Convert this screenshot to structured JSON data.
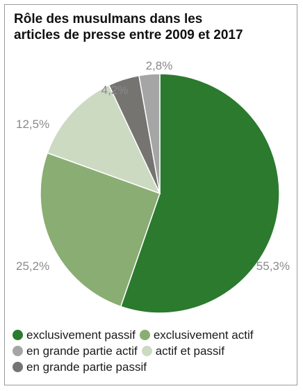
{
  "chart_data": {
    "type": "pie",
    "title_lines": [
      "Rôle des musulmans dans les",
      "articles de presse entre 2009 et 2017"
    ],
    "slices": [
      {
        "name": "exclusivement passif",
        "value": 55.3,
        "label": "55,3%",
        "color": "#2b7a2e"
      },
      {
        "name": "exclusivement actif",
        "value": 25.2,
        "label": "25,2%",
        "color": "#8aad73"
      },
      {
        "name": "actif et passif",
        "value": 12.5,
        "label": "12,5%",
        "color": "#ccdac2"
      },
      {
        "name": "en grande partie passif",
        "value": 4.2,
        "label": "4,2%",
        "color": "#757471"
      },
      {
        "name": "en grande partie actif",
        "value": 2.8,
        "label": "2,8%",
        "color": "#a5a5a5"
      }
    ],
    "legend": {
      "placement": "bottom",
      "rows": [
        [
          {
            "label": "exclusivement passif",
            "color": "#2b7a2e"
          },
          {
            "label": "exclusivement actif",
            "color": "#8aad73"
          }
        ],
        [
          {
            "label": "en grande partie actif",
            "color": "#a5a5a5"
          },
          {
            "label": "actif et passif",
            "color": "#ccdac2"
          }
        ],
        [
          {
            "label": "en grande partie passif",
            "color": "#757471"
          }
        ]
      ]
    },
    "label_color": "#8a8a8a"
  }
}
